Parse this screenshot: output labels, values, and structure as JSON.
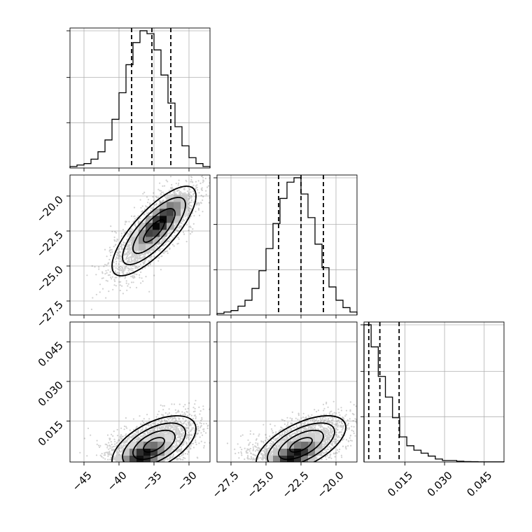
{
  "chart_data": {
    "type": "corner",
    "grid": true,
    "params": [
      {
        "range": [
          -47,
          -27
        ],
        "ticks": [
          -45,
          -40,
          -35,
          -30
        ],
        "tick_labels": [
          "−45",
          "−40",
          "−35",
          "−30"
        ],
        "hist_edges": [
          -47,
          -46,
          -45,
          -44,
          -43,
          -42,
          -41,
          -40,
          -39,
          -38,
          -37,
          -36,
          -35,
          -34,
          -33,
          -32,
          -31,
          -30,
          -29,
          -28,
          -27
        ],
        "hist_counts": [
          1,
          2,
          3,
          6,
          11,
          19,
          33,
          51,
          70,
          85,
          93,
          91,
          80,
          63,
          44,
          28,
          15,
          7,
          3,
          1
        ],
        "quantiles": [
          -38.2,
          -35.3,
          -32.6
        ]
      },
      {
        "range": [
          -28.5,
          -18.5
        ],
        "ticks": [
          -27.5,
          -25.0,
          -22.5,
          -20.0
        ],
        "tick_labels": [
          "−27.5",
          "−25.0",
          "−22.5",
          "−20.0"
        ],
        "hist_edges": [
          -28.5,
          -28.0,
          -27.5,
          -27.0,
          -26.5,
          -26.0,
          -25.5,
          -25.0,
          -24.5,
          -24.0,
          -23.5,
          -23.0,
          -22.5,
          -22.0,
          -21.5,
          -21.0,
          -20.5,
          -20.0,
          -19.5,
          -19.0,
          -18.5
        ],
        "hist_counts": [
          1,
          2,
          3,
          6,
          10,
          18,
          30,
          45,
          62,
          79,
          90,
          93,
          82,
          66,
          48,
          32,
          19,
          10,
          5,
          2
        ],
        "quantiles": [
          -24.1,
          -22.5,
          -20.9
        ]
      },
      {
        "range": [
          -0.0005,
          0.0525
        ],
        "ticks": [
          0.015,
          0.03,
          0.045
        ],
        "tick_labels": [
          "0.015",
          "0.030",
          "0.045"
        ],
        "hist_edges": [
          -0.0005,
          0.0022,
          0.0049,
          0.0076,
          0.0103,
          0.013,
          0.0157,
          0.0184,
          0.0211,
          0.0238,
          0.0265,
          0.0292,
          0.0319,
          0.0346,
          0.0373,
          0.04,
          0.0427,
          0.0454,
          0.0481,
          0.0508,
          0.0525
        ],
        "hist_counts": [
          93,
          78,
          58,
          44,
          30,
          17,
          11,
          8,
          6,
          4,
          2,
          1,
          1,
          0.5,
          0.3,
          0.2,
          0.1,
          0.1,
          0.1,
          0.1
        ],
        "quantiles": [
          0.0013,
          0.0055,
          0.0128
        ]
      }
    ],
    "pairs": [
      {
        "x_param": 0,
        "y_param": 1,
        "mean": [
          -35.0,
          -22.5
        ],
        "sd": [
          3.0,
          1.6
        ],
        "rho": 0.78,
        "density_peak": [
          -34.2,
          -21.9
        ],
        "contour_levels_sigma": [
          0.5,
          1.0,
          1.5,
          2.0
        ],
        "sample_points": 2500
      },
      {
        "x_param": 0,
        "y_param": 2,
        "mean": [
          -35.0,
          0.006
        ],
        "sd": [
          3.0,
          0.0055
        ],
        "rho": 0.55,
        "density_peak": [
          -36.5,
          0.002
        ],
        "contour_levels_sigma": [
          0.5,
          1.0,
          1.5,
          2.0
        ],
        "sample_points": 2500
      },
      {
        "x_param": 1,
        "y_param": 2,
        "mean": [
          -22.5,
          0.006
        ],
        "sd": [
          1.6,
          0.0055
        ],
        "rho": 0.6,
        "density_peak": [
          -23.0,
          0.002
        ],
        "contour_levels_sigma": [
          0.5,
          1.0,
          1.5,
          2.0
        ],
        "sample_points": 2500
      }
    ]
  }
}
